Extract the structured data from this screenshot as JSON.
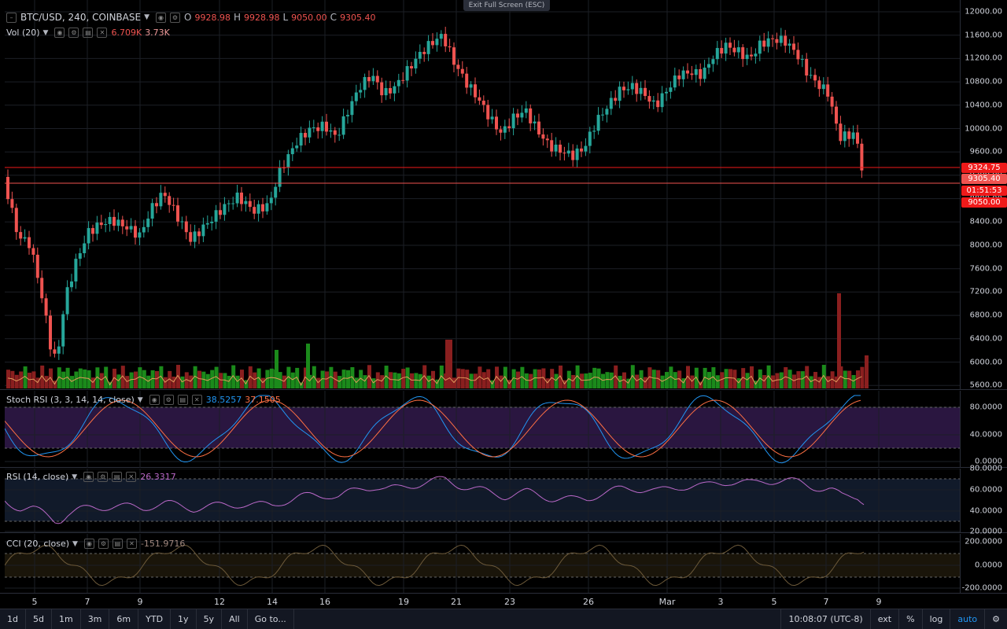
{
  "header": {
    "symbol": "BTC/USD, 240, COINBASE",
    "o_label": "O",
    "o_value": "9928.98",
    "h_label": "H",
    "h_value": "9928.98",
    "l_label": "L",
    "l_value": "9050.00",
    "c_label": "C",
    "c_value": "9305.40"
  },
  "exit_fullscreen": "Exit Full Screen (ESC)",
  "volume": {
    "label": "Vol (20)",
    "v1": "6.709K",
    "v2": "3.73K"
  },
  "price_axis": {
    "ticks": [
      "12000.00",
      "11600.00",
      "11200.00",
      "10800.00",
      "10400.00",
      "10000.00",
      "9600.00",
      "9200.00",
      "8800.00",
      "8400.00",
      "8000.00",
      "7600.00",
      "7200.00",
      "6800.00",
      "6400.00",
      "6000.00",
      "5600.00"
    ],
    "tags": {
      "top": "9324.75",
      "last": "9305.40",
      "countdown": "01:51:53",
      "low": "9050.00"
    }
  },
  "stoch": {
    "label": "Stoch RSI (3, 3, 14, 14, close)",
    "v1": "38.5257",
    "v2": "37.1505",
    "ticks": [
      "80.0000",
      "40.0000",
      "0.0000"
    ]
  },
  "rsi": {
    "label": "RSI (14, close)",
    "v1": "26.3317",
    "ticks": [
      "80.0000",
      "60.0000",
      "40.0000",
      "20.0000"
    ]
  },
  "cci": {
    "label": "CCI (20, close)",
    "v1": "-151.9716",
    "ticks": [
      "200.0000",
      "0.0000",
      "-200.0000"
    ]
  },
  "time_axis": [
    "5",
    "7",
    "9",
    "12",
    "14",
    "16",
    "19",
    "21",
    "23",
    "26",
    "Mar",
    "3",
    "5",
    "7",
    "9"
  ],
  "bottom": {
    "ranges": [
      "1d",
      "5d",
      "1m",
      "3m",
      "6m",
      "YTD",
      "1y",
      "5y",
      "All"
    ],
    "goto": "Go to...",
    "clock": "10:08:07 (UTC-8)",
    "ext": "ext",
    "pct": "%",
    "log": "log",
    "auto": "auto"
  },
  "colors": {
    "up": "#26a69a",
    "down": "#ef5350",
    "vol_up": "#1b8a1b",
    "vol_down": "#8a1f1f",
    "accent": "#2196f3"
  }
}
